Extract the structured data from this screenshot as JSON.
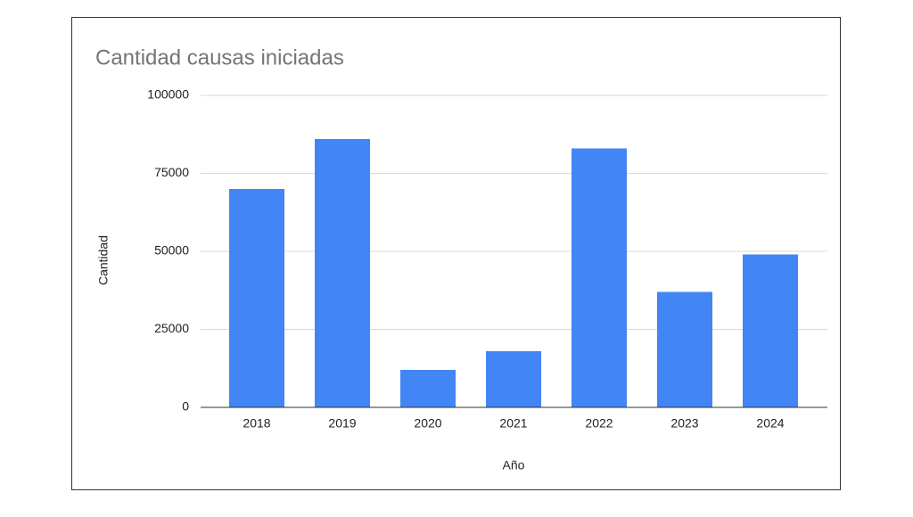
{
  "chart_data": {
    "type": "bar",
    "title": "Cantidad causas iniciadas",
    "x_label": "Año",
    "y_label": "Cantidad",
    "categories": [
      "2018",
      "2019",
      "2020",
      "2021",
      "2022",
      "2023",
      "2024"
    ],
    "values": [
      70000,
      86000,
      12000,
      18000,
      83000,
      37000,
      49000
    ],
    "color": "#4285f4",
    "ylim": [
      0,
      100000
    ],
    "yticks": [
      0,
      25000,
      50000,
      75000,
      100000
    ],
    "grid": true
  }
}
